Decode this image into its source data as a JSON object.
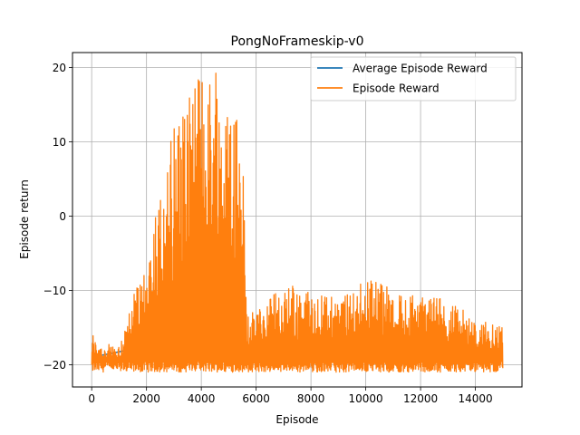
{
  "chart_data": {
    "type": "line",
    "title": "PongNoFrameskip-v0",
    "xlabel": "Episode",
    "ylabel": "Episode return",
    "xlim": [
      -700,
      15700
    ],
    "ylim": [
      -23,
      22
    ],
    "xticks": [
      0,
      2000,
      4000,
      6000,
      8000,
      10000,
      12000,
      14000
    ],
    "yticks": [
      -20,
      -10,
      0,
      10,
      20
    ],
    "grid": true,
    "legend_position": "top-right",
    "series": [
      {
        "name": "Average Episode Reward",
        "color": "#1f77b4",
        "x": [
          0,
          5500,
          5600,
          5650,
          5700,
          6000,
          8000,
          10000,
          12000,
          14000,
          15000
        ],
        "y": [
          -19,
          -15,
          -16,
          -17,
          -18.5,
          -19.5,
          -19.5,
          -19.5,
          -19.5,
          -19.5,
          -19.5
        ]
      },
      {
        "name": "Episode Reward",
        "color": "#ff7f0e",
        "x": [
          0,
          500,
          1000,
          1500,
          2000,
          2500,
          3000,
          3500,
          4000,
          4500,
          5000,
          5500,
          5650,
          6000,
          7000,
          8000,
          9000,
          10000,
          11000,
          12000,
          13000,
          14000,
          15000
        ],
        "upper": [
          -16,
          -17,
          -17,
          -11,
          -6,
          4,
          12,
          16,
          19,
          20,
          17,
          12,
          -13,
          -13,
          -9,
          -10,
          -11,
          -8,
          -10,
          -11,
          -11,
          -14,
          -14
        ],
        "lower": [
          -21,
          -21,
          -21,
          -21,
          -21,
          -21,
          -21,
          -21,
          -21,
          -21,
          -21,
          -21,
          -21,
          -21,
          -21,
          -21,
          -21,
          -21,
          -21,
          -21,
          -21,
          -21,
          -21
        ]
      }
    ]
  }
}
